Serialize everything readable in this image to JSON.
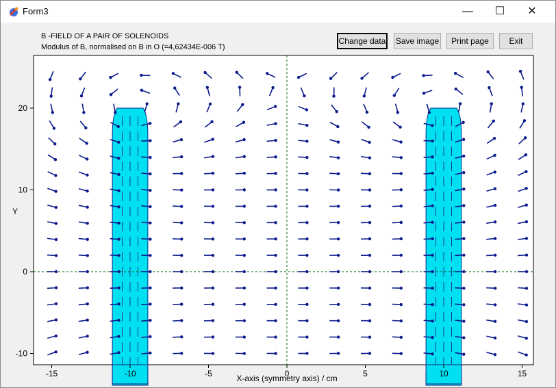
{
  "window": {
    "title": "Form3",
    "icon": "app-icon",
    "controls": {
      "minimize": "—",
      "maximize": "☐",
      "close": "✕"
    }
  },
  "header": {
    "title": "B -FIELD OF A PAIR OF SOLENOIDS",
    "subtitle": "Modulus of B, normalised on B in O (=4,62434E-006 T)"
  },
  "buttons": {
    "change_data": "Change data",
    "save_image": "Save image",
    "print_page": "Print page",
    "exit": "Exit"
  },
  "chart_data": {
    "type": "vector-field",
    "xlabel": "X-axis (symmetry axis)  /  cm",
    "ylabel": "Y",
    "xlim": [
      -16.5,
      16.5
    ],
    "ylim": [
      -11,
      26
    ],
    "xticks": [
      -15,
      -10,
      -5,
      0,
      5,
      10,
      15
    ],
    "xtick_labels": [
      "-15",
      "-10",
      "-5",
      "0",
      "5",
      "10",
      "15"
    ],
    "yticks": [
      -10,
      0,
      10,
      20
    ],
    "ytick_labels": [
      "-10",
      "0",
      "10",
      "20"
    ],
    "grid_x": [
      -15,
      -13,
      -11,
      -9,
      -7,
      -5,
      -3,
      -1,
      1,
      3,
      5,
      7,
      9,
      11,
      13,
      15
    ],
    "grid_y": [
      -10,
      -8,
      -6,
      -4,
      -2,
      0,
      2,
      4,
      6,
      8,
      10,
      12,
      14,
      16,
      18,
      20,
      22,
      24
    ],
    "solenoids": [
      {
        "center_x": -10,
        "half_width": 1,
        "y_top": 20
      },
      {
        "center_x": 10,
        "half_width": 1,
        "y_top": 20
      }
    ],
    "dashed_axes": [
      "x = 0",
      "y = 0"
    ],
    "colors": {
      "arrow": "#0a1a8c",
      "solenoid": "#00e0f0",
      "axis": "#006600"
    }
  }
}
